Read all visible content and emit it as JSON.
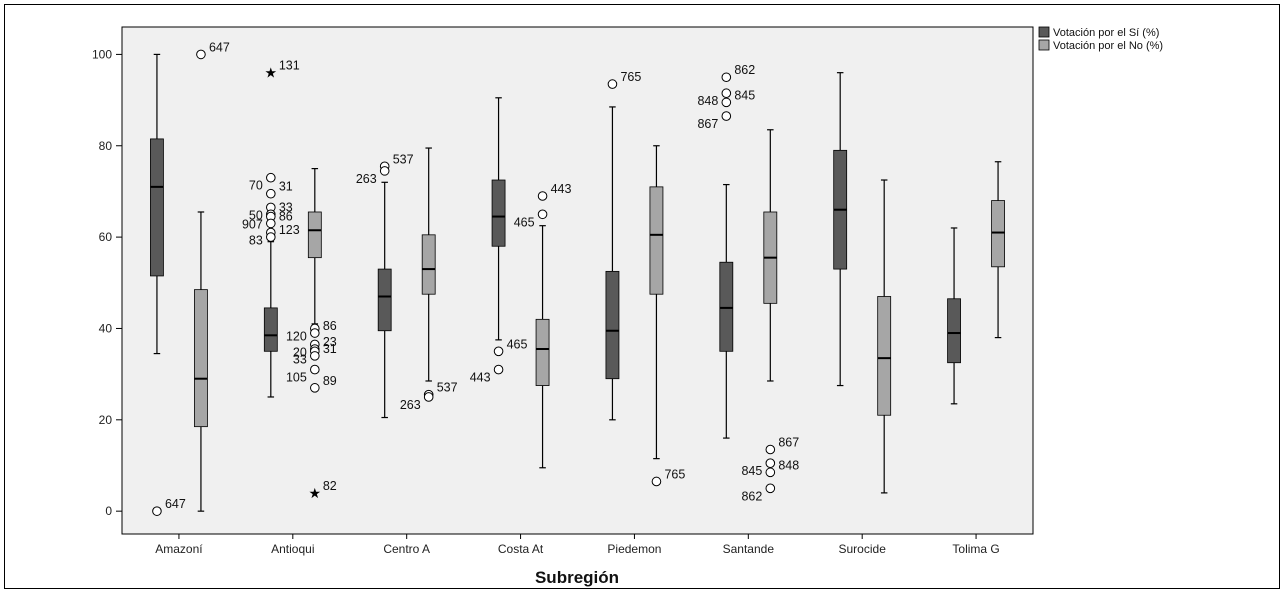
{
  "chart_data": {
    "type": "boxplot",
    "xlabel": "Subregión",
    "ylabel": "",
    "ylim": [
      -5,
      106
    ],
    "yticks": [
      0,
      20,
      40,
      60,
      80,
      100
    ],
    "grid": false,
    "legend_position": "top-right",
    "categories": [
      "Amazoní",
      "Antioqui",
      "Centro A",
      "Costa At",
      "Piedemon",
      "Santande",
      "Surocide",
      "Tolima G"
    ],
    "series": [
      {
        "name": "Votación por el Sí (%)",
        "color": "#595959",
        "boxes": [
          {
            "whisker_low": 34.5,
            "q1": 51.5,
            "median": 71,
            "q3": 81.5,
            "whisker_high": 100,
            "outliers": [
              {
                "y": 0,
                "label": "647",
                "marker": "circle"
              }
            ]
          },
          {
            "whisker_low": 25,
            "q1": 35,
            "median": 38.5,
            "q3": 44.5,
            "whisker_high": 59,
            "outliers": [
              {
                "y": 96,
                "label": "131",
                "marker": "star"
              },
              {
                "y": 73,
                "label": "70",
                "marker": "circle"
              },
              {
                "y": 69.5,
                "label": "31",
                "marker": "circle"
              },
              {
                "y": 66.5,
                "label": "50",
                "marker": "circle"
              },
              {
                "y": 65,
                "label": "33",
                "marker": "circle"
              },
              {
                "y": 64.5,
                "label": "907",
                "marker": "circle"
              },
              {
                "y": 63,
                "label": "86",
                "marker": "circle"
              },
              {
                "y": 61,
                "label": "83",
                "marker": "circle"
              },
              {
                "y": 60,
                "label": "123",
                "marker": "circle"
              }
            ]
          },
          {
            "whisker_low": 20.5,
            "q1": 39.5,
            "median": 47,
            "q3": 53,
            "whisker_high": 72,
            "outliers": [
              {
                "y": 75.5,
                "label": "537",
                "marker": "circle"
              },
              {
                "y": 74.5,
                "label": "263",
                "marker": "circle"
              }
            ]
          },
          {
            "whisker_low": 37.5,
            "q1": 58,
            "median": 64.5,
            "q3": 72.5,
            "whisker_high": 90.5,
            "outliers": [
              {
                "y": 35,
                "label": "465",
                "marker": "circle"
              },
              {
                "y": 31,
                "label": "443",
                "marker": "circle"
              }
            ]
          },
          {
            "whisker_low": 20,
            "q1": 29,
            "median": 39.5,
            "q3": 52.5,
            "whisker_high": 88.5,
            "outliers": [
              {
                "y": 93.5,
                "label": "765",
                "marker": "circle"
              }
            ]
          },
          {
            "whisker_low": 16,
            "q1": 35,
            "median": 44.5,
            "q3": 54.5,
            "whisker_high": 71.5,
            "outliers": [
              {
                "y": 95,
                "label": "862",
                "marker": "circle"
              },
              {
                "y": 91.5,
                "label": "848",
                "marker": "circle"
              },
              {
                "y": 89.5,
                "label": "845",
                "marker": "circle"
              },
              {
                "y": 86.5,
                "label": "867",
                "marker": "circle"
              }
            ]
          },
          {
            "whisker_low": 27.5,
            "q1": 53,
            "median": 66,
            "q3": 79,
            "whisker_high": 96,
            "outliers": []
          },
          {
            "whisker_low": 23.5,
            "q1": 32.5,
            "median": 39,
            "q3": 46.5,
            "whisker_high": 62,
            "outliers": []
          }
        ]
      },
      {
        "name": "Votación por el No (%)",
        "color": "#a6a6a6",
        "boxes": [
          {
            "whisker_low": 0,
            "q1": 18.5,
            "median": 29,
            "q3": 48.5,
            "whisker_high": 65.5,
            "outliers": [
              {
                "y": 100,
                "label": "647",
                "marker": "circle"
              }
            ]
          },
          {
            "whisker_low": 41,
            "q1": 55.5,
            "median": 61.5,
            "q3": 65.5,
            "whisker_high": 75,
            "outliers": [
              {
                "y": 4,
                "label": "82",
                "marker": "star"
              },
              {
                "y": 40,
                "label": "120",
                "marker": "circle"
              },
              {
                "y": 39,
                "label": "86",
                "marker": "circle"
              },
              {
                "y": 36.5,
                "label": "20",
                "marker": "circle"
              },
              {
                "y": 35.5,
                "label": "23",
                "marker": "circle"
              },
              {
                "y": 35,
                "label": "33",
                "marker": "circle"
              },
              {
                "y": 34,
                "label": "31",
                "marker": "circle"
              },
              {
                "y": 31,
                "label": "105",
                "marker": "circle"
              },
              {
                "y": 27,
                "label": "89",
                "marker": "circle"
              }
            ]
          },
          {
            "whisker_low": 28.5,
            "q1": 47.5,
            "median": 53,
            "q3": 60.5,
            "whisker_high": 79.5,
            "outliers": [
              {
                "y": 25.5,
                "label": "537",
                "marker": "circle"
              },
              {
                "y": 25,
                "label": "263",
                "marker": "circle"
              }
            ]
          },
          {
            "whisker_low": 9.5,
            "q1": 27.5,
            "median": 35.5,
            "q3": 42,
            "whisker_high": 62.5,
            "outliers": [
              {
                "y": 69,
                "label": "443",
                "marker": "circle"
              },
              {
                "y": 65,
                "label": "465",
                "marker": "circle"
              }
            ]
          },
          {
            "whisker_low": 11.5,
            "q1": 47.5,
            "median": 60.5,
            "q3": 71,
            "whisker_high": 80,
            "outliers": [
              {
                "y": 6.5,
                "label": "765",
                "marker": "circle"
              }
            ]
          },
          {
            "whisker_low": 28.5,
            "q1": 45.5,
            "median": 55.5,
            "q3": 65.5,
            "whisker_high": 83.5,
            "outliers": [
              {
                "y": 13.5,
                "label": "867",
                "marker": "circle"
              },
              {
                "y": 10.5,
                "label": "845",
                "marker": "circle"
              },
              {
                "y": 8.5,
                "label": "848",
                "marker": "circle"
              },
              {
                "y": 5,
                "label": "862",
                "marker": "circle"
              }
            ]
          },
          {
            "whisker_low": 4,
            "q1": 21,
            "median": 33.5,
            "q3": 47,
            "whisker_high": 72.5,
            "outliers": []
          },
          {
            "whisker_low": 38,
            "q1": 53.5,
            "median": 61,
            "q3": 68,
            "whisker_high": 76.5,
            "outliers": []
          }
        ]
      }
    ]
  }
}
